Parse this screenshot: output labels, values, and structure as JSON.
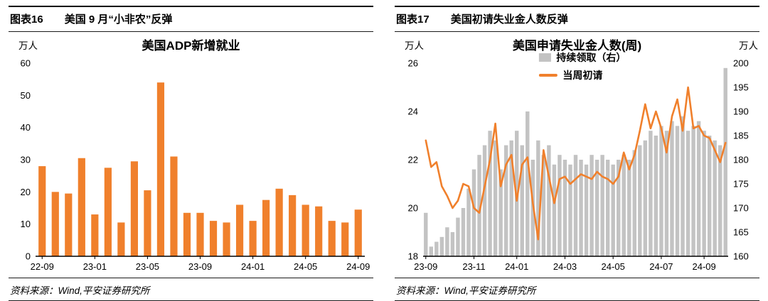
{
  "panels": [
    {
      "tag": "图表16",
      "title": "美国 9 月“小非农”反弹",
      "source": "资料来源：Wind,平安证券研究所"
    },
    {
      "tag": "图表17",
      "title": "美国初请失业金人数反弹",
      "source": "资料来源：Wind,平安证券研究所"
    }
  ],
  "chart_data": [
    {
      "type": "bar",
      "title": "美国ADP新增就业",
      "ylabel": "万人",
      "ylim": [
        0,
        60
      ],
      "yticks": [
        0,
        10,
        20,
        30,
        40,
        50,
        60
      ],
      "grid": false,
      "bar_color": "#F0802C",
      "categories": [
        "22-09",
        "22-10",
        "22-11",
        "22-12",
        "23-01",
        "23-02",
        "23-03",
        "23-04",
        "23-05",
        "23-06",
        "23-07",
        "23-08",
        "23-09",
        "23-10",
        "23-11",
        "23-12",
        "24-01",
        "24-02",
        "24-03",
        "24-04",
        "24-05",
        "24-06",
        "24-07",
        "24-08",
        "24-09"
      ],
      "values": [
        28,
        20,
        19.5,
        30.5,
        13,
        27.5,
        10.5,
        29.5,
        20.5,
        54,
        31,
        13.5,
        13.5,
        11,
        10.5,
        16,
        11,
        17.5,
        21,
        19,
        16,
        15.5,
        11,
        10.5,
        14.5
      ],
      "xtick_labels": [
        "22-09",
        "23-01",
        "23-05",
        "23-09",
        "24-01",
        "24-05",
        "24-09"
      ],
      "xtick_positions": [
        0,
        4,
        8,
        12,
        16,
        20,
        24
      ]
    },
    {
      "type": "bar+line",
      "title": "美国申请失业金人数(周)",
      "ylabel_left": "万人",
      "ylabel_right": "万人",
      "left_ylim": [
        18,
        26
      ],
      "left_yticks": [
        18,
        20,
        22,
        24,
        26
      ],
      "right_ylim": [
        160,
        200
      ],
      "right_yticks": [
        160,
        165,
        170,
        175,
        180,
        185,
        190,
        195,
        200
      ],
      "grid": false,
      "legend_position": "top-center",
      "xtick_labels": [
        "23-09",
        "23-11",
        "24-01",
        "24-03",
        "24-05",
        "24-07",
        "24-09"
      ],
      "xtick_positions": [
        0,
        9,
        17,
        26,
        35,
        44,
        52
      ],
      "series": [
        {
          "name": "持续领取（右）",
          "type": "bar",
          "axis": "right",
          "color": "#C3C3C3",
          "values": [
            169,
            162,
            163,
            164,
            166,
            165,
            168,
            170,
            174,
            178,
            181,
            183,
            186,
            184,
            178,
            183,
            184,
            186,
            183,
            190,
            180,
            184,
            181,
            183,
            179,
            181,
            180,
            179,
            181,
            180,
            179,
            181,
            180,
            181,
            180,
            179,
            180,
            181,
            180,
            182,
            183,
            184,
            186,
            185,
            187,
            186,
            188,
            187,
            189,
            186,
            187,
            188,
            186,
            185,
            184,
            183,
            199
          ]
        },
        {
          "name": "当周初请",
          "type": "line",
          "axis": "left",
          "color": "#F0802C",
          "values": [
            22.8,
            21.7,
            21.9,
            20.9,
            20.5,
            20.0,
            20.3,
            21.0,
            20.9,
            20.0,
            19.8,
            20.9,
            22.0,
            23.5,
            20.9,
            21.8,
            22.2,
            20.3,
            21.8,
            22.1,
            20.2,
            18.7,
            22.4,
            21.3,
            20.2,
            21.2,
            21.3,
            21.0,
            21.2,
            21.4,
            21.3,
            21.2,
            21.5,
            21.3,
            21.2,
            21.0,
            21.3,
            22.3,
            21.6,
            22.2,
            23.2,
            24.3,
            23.3,
            24.0,
            23.3,
            22.3,
            23.8,
            24.5,
            23.2,
            25.0,
            23.3,
            23.4,
            23.0,
            22.9,
            22.4,
            21.9,
            22.7
          ]
        }
      ]
    }
  ]
}
